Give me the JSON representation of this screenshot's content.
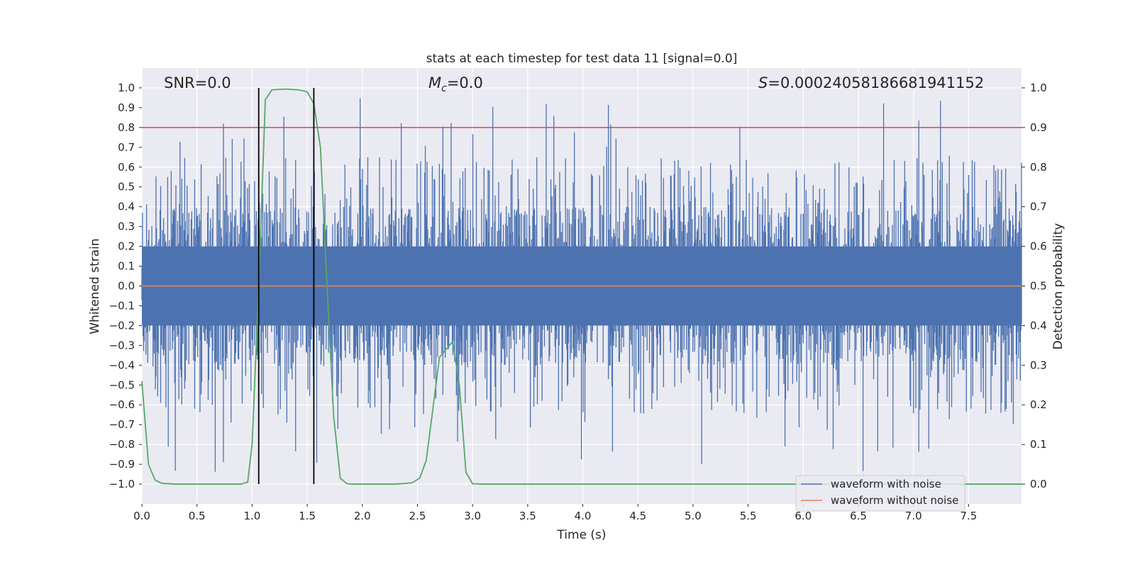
{
  "chart_data": {
    "type": "line",
    "title": "stats at each timestep for test data 11 [signal=0.0]",
    "xlabel": "Time (s)",
    "ylabel": "Whitened strain",
    "y2label": "Detection probability",
    "xlim": [
      0.0,
      7.98
    ],
    "ylim": [
      -1.1,
      1.1
    ],
    "y2lim": [
      -0.05,
      1.05
    ],
    "xticks": [
      0.0,
      0.5,
      1.0,
      1.5,
      2.0,
      2.5,
      3.0,
      3.5,
      4.0,
      4.5,
      5.0,
      5.5,
      6.0,
      6.5,
      7.0,
      7.5
    ],
    "xtick_labels": [
      "0.0",
      "0.5",
      "1.0",
      "1.5",
      "2.0",
      "2.5",
      "3.0",
      "3.5",
      "4.0",
      "4.5",
      "5.0",
      "5.5",
      "6.0",
      "6.5",
      "7.0",
      "7.5"
    ],
    "yticks": [
      -1.0,
      -0.9,
      -0.8,
      -0.7,
      -0.6,
      -0.5,
      -0.4,
      -0.3,
      -0.2,
      -0.1,
      0.0,
      0.1,
      0.2,
      0.3,
      0.4,
      0.5,
      0.6,
      0.7,
      0.8,
      0.9,
      1.0
    ],
    "ytick_labels": [
      "−1.0",
      "−0.9",
      "−0.8",
      "−0.7",
      "−0.6",
      "−0.5",
      "−0.4",
      "−0.3",
      "−0.2",
      "−0.1",
      "0.0",
      "0.1",
      "0.2",
      "0.3",
      "0.4",
      "0.5",
      "0.6",
      "0.7",
      "0.8",
      "0.9",
      "1.0"
    ],
    "y2ticks": [
      0.0,
      0.1,
      0.2,
      0.3,
      0.4,
      0.5,
      0.6,
      0.7,
      0.8,
      0.9,
      1.0
    ],
    "y2tick_labels": [
      "0.0",
      "0.1",
      "0.2",
      "0.3",
      "0.4",
      "0.5",
      "0.6",
      "0.7",
      "0.8",
      "0.9",
      "1.0"
    ],
    "grid": true,
    "annotations": {
      "snr": "SNR=0.0",
      "mc_symbol": "M",
      "mc_subscript": "c",
      "mc_value": "=0.0",
      "s_symbol": "S",
      "s_value": "=0.00024058186681941152"
    },
    "threshold_line": {
      "y2": 0.9,
      "color": "#c44e52"
    },
    "vertical_lines": [
      1.06,
      1.56
    ],
    "noise_envelope": {
      "dense_band": 0.2,
      "typical_peak": 0.4,
      "max_positive": 0.99,
      "min_negative": -0.99,
      "samples": 1500,
      "seed": 11
    },
    "series": [
      {
        "name": "waveform with noise",
        "axis": "left",
        "color": "#4c72b0",
        "kind": "noise"
      },
      {
        "name": "waveform without noise",
        "axis": "left",
        "color": "#dd8452",
        "x": [
          0.0,
          7.98
        ],
        "y": [
          0.0,
          0.0
        ]
      },
      {
        "name": "Detection probability",
        "axis": "right",
        "color": "#55a868",
        "x": [
          0.0,
          0.06,
          0.12,
          0.18,
          0.3,
          0.6,
          0.9,
          0.96,
          1.0,
          1.06,
          1.12,
          1.18,
          1.3,
          1.42,
          1.5,
          1.56,
          1.62,
          1.68,
          1.74,
          1.8,
          1.86,
          1.92,
          2.1,
          2.3,
          2.45,
          2.52,
          2.58,
          2.64,
          2.7,
          2.76,
          2.82,
          2.88,
          2.94,
          3.0,
          3.1,
          7.98
        ],
        "y": [
          0.26,
          0.05,
          0.01,
          0.002,
          0.0,
          0.0,
          0.0,
          0.005,
          0.1,
          0.5,
          0.97,
          0.995,
          0.997,
          0.995,
          0.99,
          0.96,
          0.85,
          0.5,
          0.17,
          0.015,
          0.001,
          0.0,
          0.0,
          0.0,
          0.003,
          0.015,
          0.06,
          0.19,
          0.32,
          0.34,
          0.36,
          0.25,
          0.03,
          0.001,
          0.0,
          0.0
        ]
      }
    ],
    "legend": {
      "position": "lower right",
      "entries": [
        "waveform with noise",
        "waveform without noise"
      ]
    },
    "colors": {
      "plot_bg": "#eaeaf2",
      "grid": "#ffffff",
      "text": "#262626",
      "vline": "#000000"
    }
  }
}
